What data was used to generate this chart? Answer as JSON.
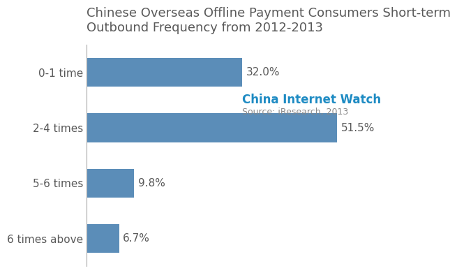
{
  "title": "Chinese Overseas Offline Payment Consumers Short-term\nOutbound Frequency from 2012-2013",
  "categories": [
    "0-1 time",
    "2-4 times",
    "5-6 times",
    "6 times above"
  ],
  "values": [
    32.0,
    51.5,
    9.8,
    6.7
  ],
  "labels": [
    "32.0%",
    "51.5%",
    "9.8%",
    "6.7%"
  ],
  "bar_color": "#5b8db8",
  "title_color": "#595959",
  "label_color": "#595959",
  "watermark_text": "China Internet Watch",
  "watermark_color": "#1e8bc3",
  "source_text": "Source: iResearch, 2013",
  "source_color": "#888888",
  "xlim": [
    0,
    62
  ],
  "background_color": "#ffffff",
  "title_fontsize": 13,
  "label_fontsize": 11,
  "tick_fontsize": 11,
  "watermark_fontsize": 12,
  "source_fontsize": 9
}
